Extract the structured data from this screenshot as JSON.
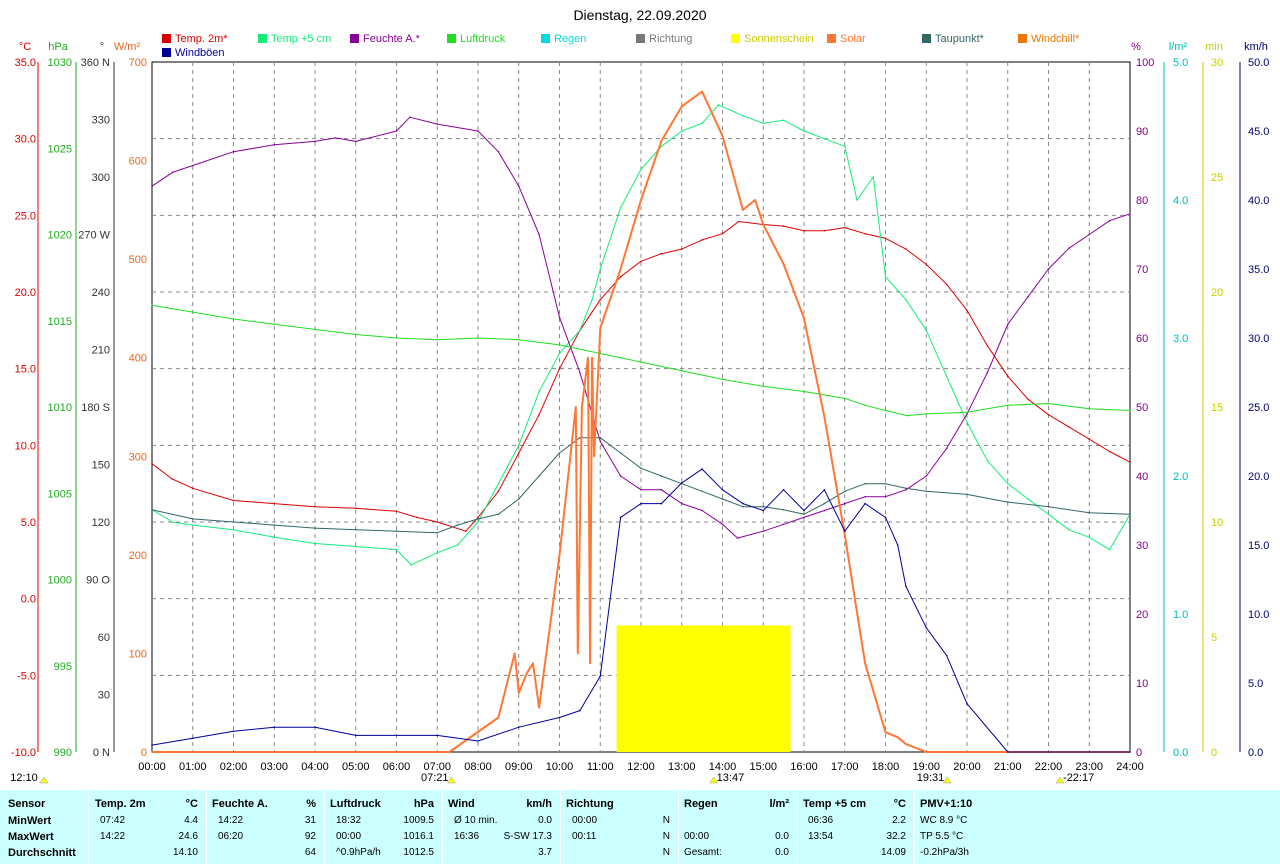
{
  "title": "Dienstag, 22.09.2020",
  "colors": {
    "temp2m": "#dd0000",
    "temp5cm": "#11ee77",
    "feuchte": "#880099",
    "luftdruck": "#22dd22",
    "regen": "#00dddd",
    "richtung": "#777777",
    "sonnenschein": "#ffff00",
    "solar": "#ff7733",
    "taupunkt": "#336666",
    "windchill": "#ee7700",
    "windboen": "#000099"
  },
  "legend": [
    {
      "key": "temp2m",
      "label": "Temp. 2m*"
    },
    {
      "key": "temp5cm",
      "label": "Temp +5 cm"
    },
    {
      "key": "feuchte",
      "label": "Feuchte A.*"
    },
    {
      "key": "luftdruck",
      "label": "Luftdruck"
    },
    {
      "key": "regen",
      "label": "Regen"
    },
    {
      "key": "richtung",
      "label": "Richtung"
    },
    {
      "key": "sonnenschein",
      "label": "Sonnenschein"
    },
    {
      "key": "solar",
      "label": "Solar"
    },
    {
      "key": "taupunkt",
      "label": "Taupunkt*"
    },
    {
      "key": "windchill",
      "label": "Windchill*"
    },
    {
      "key": "windboen",
      "label": "Windböen"
    }
  ],
  "axes": {
    "temp": {
      "unit": "°C",
      "ticks": [
        "35.0",
        "30.0",
        "25.0",
        "20.0",
        "15.0",
        "10.0",
        "5.0",
        "0.0",
        "-5.0",
        "-10.0"
      ],
      "color": "#dd0000"
    },
    "pressure": {
      "unit": "hPa",
      "ticks": [
        "1030",
        "1025",
        "1020",
        "1015",
        "1010",
        "1005",
        "1000",
        "995",
        "990"
      ],
      "color": "#22aa22"
    },
    "direction": {
      "unit": "°",
      "ticks": [
        "360 N",
        "330",
        "300",
        "270 W",
        "240",
        "210",
        "180 S",
        "150",
        "120",
        "90 O",
        "60",
        "30",
        "0 N"
      ],
      "color": "#333333"
    },
    "solar": {
      "unit": "W/m²",
      "ticks": [
        "700",
        "600",
        "500",
        "400",
        "300",
        "200",
        "100",
        "0"
      ],
      "color": "#ee6622"
    },
    "humidity": {
      "unit": "%",
      "ticks": [
        "100",
        "90",
        "80",
        "70",
        "60",
        "50",
        "40",
        "30",
        "20",
        "10",
        "0"
      ],
      "color": "#880088"
    },
    "rain": {
      "unit": "l/m²",
      "ticks": [
        "5.0",
        "4.0",
        "3.0",
        "2.0",
        "1.0",
        "0.0"
      ],
      "color": "#00bbbb"
    },
    "sunshine": {
      "unit": "min",
      "ticks": [
        "30",
        "25",
        "20",
        "15",
        "10",
        "5",
        "0"
      ],
      "color": "#cccc00"
    },
    "wind": {
      "unit": "km/h",
      "ticks": [
        "50.0",
        "45.0",
        "40.0",
        "35.0",
        "30.0",
        "25.0",
        "20.0",
        "15.0",
        "10.0",
        "5.0",
        "0.0"
      ],
      "color": "#000077"
    }
  },
  "x_ticks": [
    "00:00",
    "01:00",
    "02:00",
    "03:00",
    "04:00",
    "05:00",
    "06:00",
    "07:00",
    "08:00",
    "09:00",
    "10:00",
    "11:00",
    "12:00",
    "13:00",
    "14:00",
    "15:00",
    "16:00",
    "17:00",
    "18:00",
    "19:00",
    "20:00",
    "21:00",
    "22:00",
    "23:00",
    "24:00"
  ],
  "events": {
    "moonset": "12:10",
    "sunrise": "07:21",
    "noon": "13:47",
    "sunset": "19:31",
    "moonrise": "22:17"
  },
  "chart_data": {
    "type": "line",
    "x_unit": "hours",
    "xlim": [
      0,
      24
    ],
    "series": [
      {
        "name": "Temp. 2m*",
        "axis": "temp",
        "x": [
          0,
          0.5,
          1,
          2,
          3,
          4,
          5,
          6,
          6.5,
          7,
          7.7,
          8,
          8.5,
          9,
          9.5,
          10,
          10.5,
          11,
          11.5,
          12,
          12.5,
          13,
          13.5,
          14,
          14.4,
          15,
          15.5,
          16,
          16.5,
          17,
          17.5,
          18,
          18.5,
          19,
          19.5,
          20,
          20.5,
          21,
          21.5,
          22,
          22.5,
          23,
          23.5,
          24
        ],
        "y": [
          8.8,
          7.8,
          7.2,
          6.4,
          6.2,
          6.0,
          5.9,
          5.7,
          5.3,
          5.0,
          4.4,
          5.3,
          7.0,
          9.5,
          12.0,
          15.0,
          17.5,
          19.5,
          21.0,
          22.0,
          22.5,
          22.8,
          23.4,
          23.8,
          24.6,
          24.4,
          24.3,
          24.0,
          24.0,
          24.2,
          23.8,
          23.5,
          22.8,
          21.8,
          20.5,
          18.8,
          16.5,
          14.5,
          13.0,
          12.0,
          11.2,
          10.4,
          9.6,
          8.9
        ]
      },
      {
        "name": "Temp +5 cm",
        "axis": "temp",
        "x": [
          0,
          0.5,
          1,
          2,
          3,
          4,
          5,
          6,
          6.36,
          7,
          7.5,
          8,
          8.5,
          9,
          9.5,
          10,
          10.5,
          10.8,
          11,
          11.5,
          12,
          12.5,
          13,
          13.5,
          13.9,
          14.5,
          15,
          15.5,
          16,
          16.5,
          17,
          17.3,
          17.7,
          18,
          18.5,
          19,
          19.5,
          20,
          20.5,
          21,
          21.5,
          22,
          22.5,
          23,
          23.5,
          24
        ],
        "y": [
          5.8,
          5.0,
          4.8,
          4.5,
          4.0,
          3.6,
          3.4,
          3.2,
          2.2,
          3.0,
          3.5,
          5.0,
          7.5,
          10.0,
          13.5,
          16.0,
          17.5,
          19.5,
          21.5,
          25.5,
          28.0,
          29.5,
          30.5,
          31.0,
          32.2,
          31.5,
          31.0,
          31.2,
          30.5,
          30.0,
          29.5,
          26.0,
          27.5,
          21.0,
          19.5,
          17.5,
          14.5,
          11.5,
          9.0,
          7.5,
          6.5,
          5.5,
          4.5,
          4.0,
          3.2,
          5.5
        ]
      },
      {
        "name": "Feuchte A.*",
        "axis": "humidity",
        "x": [
          0,
          0.5,
          1,
          2,
          3,
          4,
          4.5,
          5,
          6,
          6.33,
          7,
          8,
          8.5,
          9,
          9.5,
          10,
          10.5,
          11,
          11.5,
          12,
          12.5,
          13,
          13.5,
          14,
          14.37,
          15,
          15.5,
          16,
          16.5,
          17,
          17.5,
          18,
          18.5,
          19,
          19.5,
          20,
          20.5,
          21,
          21.5,
          22,
          22.5,
          23,
          23.5,
          24
        ],
        "y": [
          82,
          84,
          85,
          87,
          88,
          88.5,
          89,
          88.5,
          90,
          92,
          91,
          90,
          87,
          82,
          75,
          63,
          55,
          45,
          40,
          38,
          38,
          36,
          35,
          33,
          31,
          32,
          33,
          34,
          35,
          36,
          37,
          37,
          38,
          40,
          44,
          49,
          55,
          62,
          66,
          70,
          73,
          75,
          77,
          78
        ]
      },
      {
        "name": "Luftdruck",
        "axis": "pressure",
        "x": [
          0,
          1,
          2,
          3,
          4,
          5,
          6,
          7,
          8,
          9,
          10,
          11,
          12,
          13,
          14,
          15,
          16,
          17,
          17.5,
          18,
          18.53,
          19,
          20,
          21,
          22,
          23,
          24
        ],
        "y": [
          1015.9,
          1015.5,
          1015.1,
          1014.8,
          1014.5,
          1014.2,
          1014.0,
          1013.9,
          1014.0,
          1013.9,
          1013.6,
          1013.1,
          1012.6,
          1012.1,
          1011.6,
          1011.2,
          1010.9,
          1010.5,
          1010.1,
          1009.8,
          1009.5,
          1009.6,
          1009.7,
          1010.1,
          1010.2,
          1009.9,
          1009.8
        ]
      },
      {
        "name": "Taupunkt*",
        "axis": "temp",
        "x": [
          0,
          1,
          2,
          3,
          4,
          5,
          6,
          7,
          7.5,
          8,
          8.5,
          9,
          9.5,
          10,
          10.5,
          11,
          11.5,
          12,
          12.5,
          13,
          13.5,
          14,
          14.5,
          15,
          15.5,
          16,
          16.5,
          17,
          17.5,
          18,
          18.5,
          19,
          20,
          21,
          22,
          23,
          24
        ],
        "y": [
          5.8,
          5.2,
          5.0,
          4.8,
          4.6,
          4.5,
          4.4,
          4.3,
          4.8,
          5.2,
          5.5,
          6.5,
          8.0,
          9.5,
          10.5,
          10.5,
          9.5,
          8.5,
          8.0,
          7.5,
          7.0,
          6.5,
          6.0,
          6.0,
          5.8,
          5.5,
          6.2,
          7.0,
          7.5,
          7.5,
          7.2,
          7.0,
          6.8,
          6.3,
          6.0,
          5.6,
          5.5
        ]
      },
      {
        "name": "Solar",
        "axis": "solar",
        "x": [
          0,
          7.3,
          8.5,
          8.9,
          9,
          9.2,
          9.35,
          9.5,
          10,
          10.4,
          10.45,
          10.55,
          10.7,
          10.75,
          10.8,
          10.85,
          11,
          11.5,
          12,
          12.5,
          13,
          13.5,
          14,
          14.5,
          14.8,
          15,
          15.5,
          16,
          16.5,
          17,
          17.5,
          18,
          18.3,
          18.5,
          19,
          19.4,
          20,
          24
        ],
        "y": [
          0,
          0,
          35,
          100,
          60,
          80,
          90,
          45,
          200,
          350,
          100,
          350,
          400,
          90,
          400,
          300,
          430,
          490,
          560,
          620,
          655,
          670,
          625,
          550,
          560,
          535,
          495,
          440,
          340,
          220,
          90,
          20,
          15,
          8,
          0,
          0,
          0,
          0
        ]
      },
      {
        "name": "Windböen",
        "axis": "wind",
        "x": [
          0,
          1,
          2,
          3,
          4,
          5,
          6,
          7,
          8,
          9,
          10,
          10.5,
          11,
          11.5,
          12,
          12.5,
          13,
          13.5,
          14,
          14.5,
          15,
          15.5,
          16,
          16.5,
          17,
          17.5,
          18,
          18.3,
          18.5,
          19,
          19.5,
          20,
          21,
          22,
          23,
          24
        ],
        "y": [
          0.5,
          1.0,
          1.5,
          1.8,
          1.8,
          1.2,
          1.2,
          1.2,
          0.8,
          1.8,
          2.5,
          3.0,
          5.5,
          17.0,
          18.0,
          18.0,
          19.5,
          20.5,
          19.0,
          18.0,
          17.5,
          19.0,
          17.5,
          19.0,
          16.0,
          18.0,
          17.0,
          15.0,
          12.0,
          9.0,
          7.0,
          3.5,
          0.0,
          0.0,
          0.0,
          0.0
        ]
      }
    ],
    "sunshine_bar": {
      "start": 11.4,
      "end": 15.67,
      "value_min": 5.5
    }
  },
  "stats": {
    "headers": {
      "sensor": "Sensor",
      "temp": "Temp. 2m",
      "temp_u": "°C",
      "hum": "Feuchte A.",
      "hum_u": "%",
      "press": "Luftdruck",
      "press_u": "hPa",
      "wind": "Wind",
      "wind_u": "km/h",
      "dir": "Richtung",
      "rain": "Regen",
      "rain_u": "l/m²",
      "t5": "Temp +5 cm",
      "t5_u": "°C",
      "pmv": "PMV+1:10"
    },
    "rows": [
      {
        "label": "MinWert",
        "temp_t": "07:42",
        "temp_v": "4.4",
        "hum_t": "14:22",
        "hum_v": "31",
        "press_t": "18:32",
        "press_v": "1009.5",
        "wind_t": "Ø 10 min.",
        "wind_v": "0.0",
        "dir_t": "00:00",
        "dir_v": "N",
        "rain_t": "",
        "rain_v": "",
        "t5_t": "06:36",
        "t5_v": "2.2",
        "pmv": "WC 8.9 °C"
      },
      {
        "label": "MaxWert",
        "temp_t": "14:22",
        "temp_v": "24.6",
        "hum_t": "06:20",
        "hum_v": "92",
        "press_t": "00:00",
        "press_v": "1016.1",
        "wind_t": "16:36",
        "wind_v": "S-SW 17.3",
        "dir_t": "00:11",
        "dir_v": "N",
        "rain_t": "00:00",
        "rain_v": "0.0",
        "t5_t": "13:54",
        "t5_v": "32.2",
        "pmv": "TP 5.5 °C"
      },
      {
        "label": "Durchschnitt",
        "temp_t": "",
        "temp_v": "14.10",
        "hum_t": "",
        "hum_v": "64",
        "press_t": "^0.9hPa/h",
        "press_v": "1012.5",
        "wind_t": "",
        "wind_v": "3.7",
        "dir_t": "",
        "dir_v": "N",
        "rain_t": "Gesamt:",
        "rain_v": "0.0",
        "t5_t": "",
        "t5_v": "14.09",
        "pmv": "-0.2hPa/3h"
      }
    ]
  }
}
